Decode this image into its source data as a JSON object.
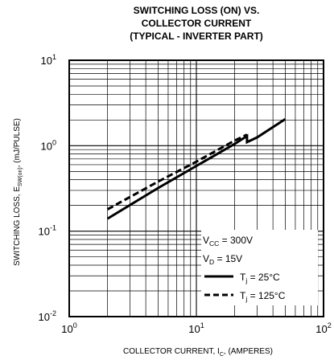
{
  "chart_data": {
    "type": "line",
    "title_lines": [
      "SWITCHING LOSS (ON) VS.",
      "COLLECTOR CURRENT",
      "(TYPICAL - INVERTER PART)"
    ],
    "x_scale": "log",
    "y_scale": "log",
    "xlim": [
      1,
      100
    ],
    "ylim": [
      0.01,
      10
    ],
    "grid": true,
    "x_ticks": [
      {
        "base": "10",
        "exp": "0",
        "value": 1
      },
      {
        "base": "10",
        "exp": "1",
        "value": 10
      },
      {
        "base": "10",
        "exp": "2",
        "value": 100
      }
    ],
    "y_ticks": [
      {
        "base": "10",
        "exp": "1",
        "value": 10
      },
      {
        "base": "10",
        "exp": "0",
        "value": 1
      },
      {
        "base": "10",
        "exp": "-1",
        "value": 0.1
      },
      {
        "base": "10",
        "exp": "-2",
        "value": 0.01
      }
    ],
    "xlabel": {
      "main": "COLLECTOR CURRENT, I",
      "sub": "C",
      "tail": ", (AMPERES)"
    },
    "ylabel": {
      "main": "SWITCHING LOSS, E",
      "sub": "SW(on)",
      "tail": ",  (mJ/PULSE)"
    },
    "series": [
      {
        "legend": {
          "main": "T",
          "sub": "j",
          "tail": " = 25°C"
        },
        "style": "solid",
        "color": "#000000",
        "x": [
          2,
          5,
          10,
          20,
          25,
          25,
          30,
          50
        ],
        "y": [
          0.14,
          0.32,
          0.58,
          1.05,
          1.3,
          1.1,
          1.25,
          2.05
        ]
      },
      {
        "legend": {
          "main": "T",
          "sub": "j",
          "tail": " = 125°C"
        },
        "style": "dashed",
        "color": "#000000",
        "x": [
          2,
          5,
          10,
          20,
          25
        ],
        "y": [
          0.18,
          0.38,
          0.65,
          1.15,
          1.35
        ]
      }
    ],
    "conditions": [
      {
        "main": "V",
        "sub": "CC",
        "tail": " = 300V"
      },
      {
        "main": "V",
        "sub": "D",
        "tail": " = 15V"
      }
    ],
    "legend_position": "bottom-right"
  }
}
